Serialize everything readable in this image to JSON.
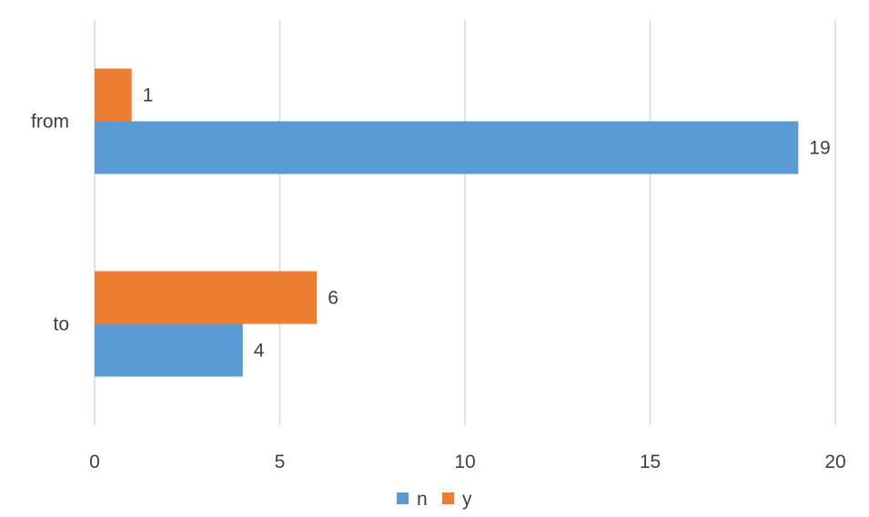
{
  "chart_data": {
    "type": "bar",
    "orientation": "horizontal",
    "categories": [
      "to",
      "from"
    ],
    "series": [
      {
        "name": "n",
        "values": [
          4,
          19
        ],
        "color": "#5B9BD5"
      },
      {
        "name": "y",
        "values": [
          6,
          1
        ],
        "color": "#ED7D31"
      }
    ],
    "xlim": [
      0,
      20
    ],
    "xticks": [
      0,
      5,
      10,
      15,
      20
    ],
    "grid": true,
    "legend": "bottom",
    "data_labels": true
  }
}
